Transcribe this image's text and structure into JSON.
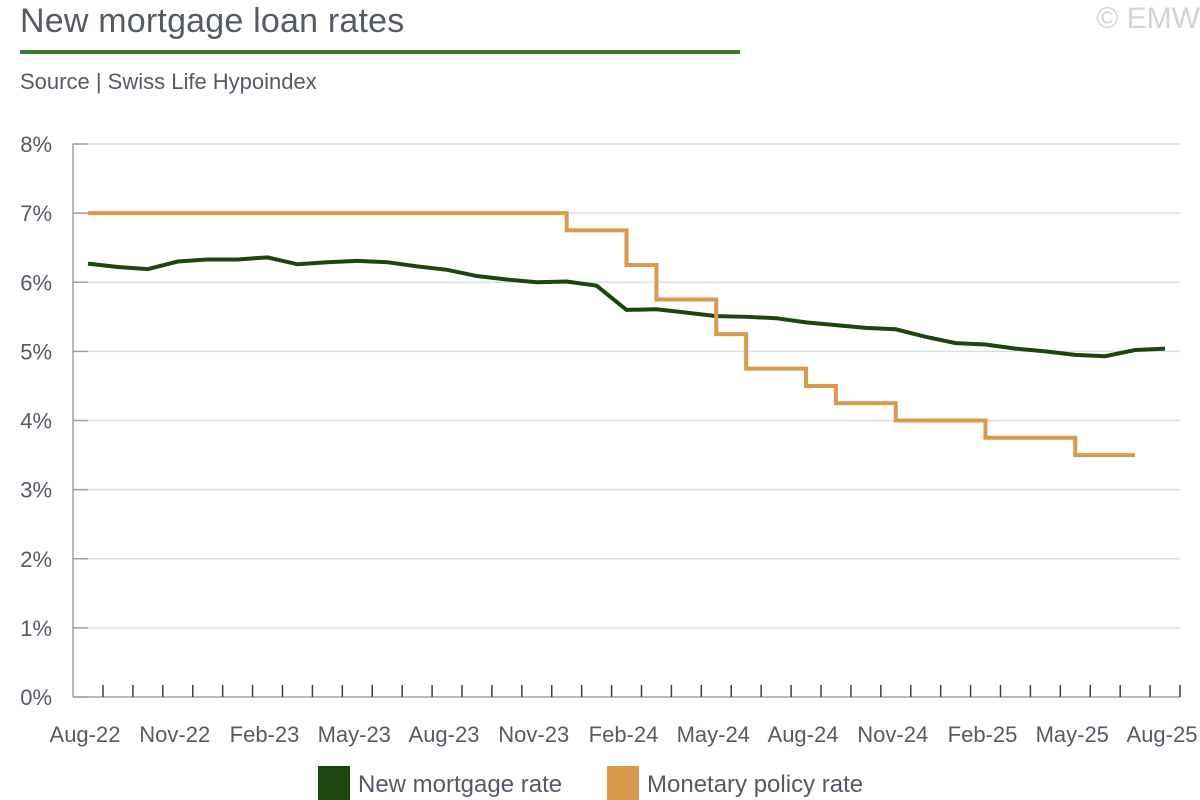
{
  "header": {
    "title": "New mortgage loan rates",
    "subtitle": "Source | Swiss Life Hypoindex",
    "copyright": "© EMW"
  },
  "chart_data": {
    "type": "line",
    "x_start": "Aug-22",
    "x_end": "Aug-25",
    "x_tick_labels": [
      "Aug-22",
      "Nov-22",
      "Feb-23",
      "May-23",
      "Aug-23",
      "Nov-23",
      "Feb-24",
      "May-24",
      "Aug-24",
      "Nov-24",
      "Feb-25",
      "May-25",
      "Aug-25"
    ],
    "y_tick_labels": [
      "0%",
      "1%",
      "2%",
      "3%",
      "4%",
      "5%",
      "6%",
      "7%",
      "8%"
    ],
    "ylim": [
      0,
      8
    ],
    "y_unit": "%",
    "grid": "horizontal",
    "legend_position": "bottom",
    "series": [
      {
        "name": "New mortgage rate",
        "color": "#1e4410",
        "step": false,
        "points": [
          [
            "Aug-22",
            6.27
          ],
          [
            "Sep-22",
            6.22
          ],
          [
            "Oct-22",
            6.19
          ],
          [
            "Nov-22",
            6.3
          ],
          [
            "Dec-22",
            6.33
          ],
          [
            "Jan-23",
            6.33
          ],
          [
            "Feb-23",
            6.36
          ],
          [
            "Mar-23",
            6.26
          ],
          [
            "Apr-23",
            6.29
          ],
          [
            "May-23",
            6.31
          ],
          [
            "Jun-23",
            6.29
          ],
          [
            "Jul-23",
            6.23
          ],
          [
            "Aug-23",
            6.18
          ],
          [
            "Sep-23",
            6.09
          ],
          [
            "Oct-23",
            6.04
          ],
          [
            "Nov-23",
            6.0
          ],
          [
            "Dec-23",
            6.01
          ],
          [
            "Jan-24",
            5.95
          ],
          [
            "Feb-24",
            5.6
          ],
          [
            "Mar-24",
            5.61
          ],
          [
            "Apr-24",
            5.56
          ],
          [
            "May-24",
            5.51
          ],
          [
            "Jun-24",
            5.5
          ],
          [
            "Jul-24",
            5.48
          ],
          [
            "Aug-24",
            5.42
          ],
          [
            "Sep-24",
            5.38
          ],
          [
            "Oct-24",
            5.34
          ],
          [
            "Nov-24",
            5.32
          ],
          [
            "Dec-24",
            5.21
          ],
          [
            "Jan-25",
            5.12
          ],
          [
            "Feb-25",
            5.1
          ],
          [
            "Mar-25",
            5.04
          ],
          [
            "Apr-25",
            5.0
          ],
          [
            "May-25",
            4.95
          ],
          [
            "Jun-25",
            4.93
          ],
          [
            "Jul-25",
            5.02
          ],
          [
            "Aug-25",
            5.04
          ]
        ]
      },
      {
        "name": "Monetary policy rate",
        "color": "#d99a4d",
        "step": true,
        "points": [
          [
            "Aug-22",
            7.0
          ],
          [
            "Dec-23",
            6.75
          ],
          [
            "Feb-24",
            6.25
          ],
          [
            "Mar-24",
            5.75
          ],
          [
            "May-24",
            5.25
          ],
          [
            "Jun-24",
            4.75
          ],
          [
            "Aug-24",
            4.5
          ],
          [
            "Sep-24",
            4.25
          ],
          [
            "Nov-24",
            4.0
          ],
          [
            "Feb-25",
            3.75
          ],
          [
            "May-25",
            3.5
          ],
          [
            "Jul-25",
            3.5
          ]
        ]
      }
    ]
  }
}
